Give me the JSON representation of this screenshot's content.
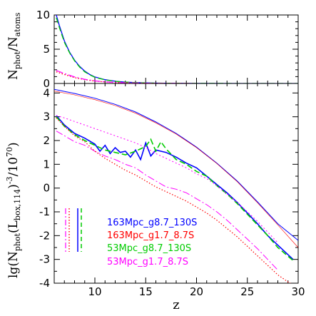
{
  "chart_data": [
    {
      "panel": "top",
      "type": "line",
      "ylabel_main": "N",
      "ylabel_sub1": "phot",
      "ylabel_mid": "/N",
      "ylabel_sub2": "atoms",
      "xlim": [
        6,
        30
      ],
      "ylim": [
        0,
        10
      ],
      "yticks": [
        0,
        5,
        10
      ],
      "series": [
        {
          "color": "#0000ff",
          "dash": "solid",
          "x": [
            6.2,
            6.5,
            7,
            7.5,
            8,
            8.5,
            9,
            9.5,
            10,
            11,
            12,
            13,
            14,
            15,
            16,
            18,
            20,
            25,
            30
          ],
          "y": [
            10,
            8.5,
            6.2,
            4.6,
            3.4,
            2.5,
            1.8,
            1.3,
            0.95,
            0.55,
            0.32,
            0.2,
            0.13,
            0.08,
            0.05,
            0.02,
            0.01,
            0.0,
            0.0
          ]
        },
        {
          "color": "#00cc00",
          "dash": "8,4",
          "x": [
            6.2,
            6.5,
            7,
            7.5,
            8,
            8.5,
            9,
            9.5,
            10,
            11,
            12,
            13,
            14,
            15,
            16,
            18,
            20,
            25,
            30
          ],
          "y": [
            9.6,
            8.2,
            6.0,
            4.5,
            3.3,
            2.4,
            1.7,
            1.25,
            0.9,
            0.52,
            0.3,
            0.19,
            0.12,
            0.07,
            0.05,
            0.02,
            0.01,
            0.0,
            0.0
          ]
        },
        {
          "color": "#ff0000",
          "dash": "1.5,2.5",
          "x": [
            6.2,
            7,
            8,
            9,
            10,
            11,
            12,
            13,
            14,
            15,
            16,
            18,
            20
          ],
          "y": [
            1.7,
            1.3,
            0.85,
            0.55,
            0.35,
            0.22,
            0.14,
            0.09,
            0.06,
            0.04,
            0.02,
            0.01,
            0.0
          ]
        },
        {
          "color": "#ff00ff",
          "dash": "10,3,2,3",
          "x": [
            6.2,
            7,
            8,
            9,
            10,
            11,
            12,
            13,
            14,
            15,
            16,
            18,
            20
          ],
          "y": [
            1.9,
            1.45,
            0.95,
            0.6,
            0.38,
            0.24,
            0.15,
            0.1,
            0.06,
            0.04,
            0.02,
            0.01,
            0.0
          ]
        }
      ]
    },
    {
      "panel": "bottom",
      "type": "line",
      "xlabel": "z",
      "ylabel_prefix": "lg(N",
      "ylabel_sub1": "phot",
      "ylabel_mid": "(L",
      "ylabel_sub2": "box,114",
      "ylabel_mid2": ")",
      "ylabel_sup1": "-3",
      "ylabel_mid3": "/10",
      "ylabel_sup2": "70",
      "ylabel_end": ")",
      "xlim": [
        6,
        30
      ],
      "ylim": [
        -4,
        4.4
      ],
      "xticks": [
        10,
        15,
        20,
        25,
        30
      ],
      "yticks": [
        -4,
        -3,
        -2,
        -1,
        0,
        1,
        2,
        3,
        4
      ],
      "legend": [
        "163Mpc_g8.7_130S",
        "163Mpc_g1.7_8.7S",
        "53Mpc_g8.7_130S",
        "53Mpc_g1.7_8.7S"
      ],
      "legend_colors": [
        "#0000ff",
        "#ff0000",
        "#00cc00",
        "#ff00ff"
      ],
      "series": [
        {
          "color": "#0000ff",
          "dash": "solid",
          "width": 1.0,
          "x": [
            6,
            8,
            10,
            12,
            14,
            16,
            18,
            20,
            22,
            24,
            26,
            28,
            30
          ],
          "y": [
            4.15,
            3.98,
            3.78,
            3.52,
            3.2,
            2.78,
            2.3,
            1.72,
            1.05,
            0.3,
            -0.58,
            -1.5,
            -2.2
          ]
        },
        {
          "color": "#ff0000",
          "dash": "solid",
          "width": 0.6,
          "x": [
            6,
            8,
            10,
            12,
            14,
            16,
            18,
            20,
            22,
            24,
            26,
            28,
            30
          ],
          "y": [
            4.08,
            3.92,
            3.72,
            3.47,
            3.15,
            2.74,
            2.27,
            1.7,
            1.03,
            0.27,
            -0.62,
            -1.55,
            -2.5
          ]
        },
        {
          "color": "#0000ff",
          "dash": "solid",
          "width": 1.6,
          "x": [
            6.2,
            7,
            8,
            9,
            10,
            10.5,
            11,
            11.5,
            12,
            12.5,
            13,
            13.5,
            14,
            14.5,
            15,
            15.5,
            16,
            16.5,
            17,
            18,
            19,
            20,
            21,
            22,
            23,
            24,
            25,
            26,
            27,
            28,
            29.5
          ],
          "y": [
            3.05,
            2.65,
            2.3,
            2.1,
            1.85,
            1.55,
            1.8,
            1.45,
            1.7,
            1.5,
            1.55,
            1.3,
            1.6,
            1.2,
            1.9,
            1.35,
            1.6,
            1.55,
            1.5,
            1.3,
            1.05,
            0.85,
            0.5,
            0.15,
            -0.2,
            -0.6,
            -1.05,
            -1.5,
            -2.0,
            -2.4,
            -3.0
          ]
        },
        {
          "color": "#00cc00",
          "dash": "8,4",
          "width": 1.6,
          "x": [
            6.2,
            7,
            8,
            9,
            10,
            11,
            12,
            13,
            14,
            15,
            15.5,
            16,
            16.5,
            17,
            18,
            19,
            20,
            21,
            22,
            23,
            24,
            25,
            26,
            27,
            28,
            29.5
          ],
          "y": [
            3.0,
            2.6,
            2.25,
            2.0,
            1.8,
            1.6,
            1.5,
            1.4,
            1.55,
            1.75,
            2.05,
            1.55,
            1.95,
            1.65,
            1.2,
            1.0,
            0.7,
            0.5,
            0.1,
            -0.25,
            -0.65,
            -1.1,
            -1.55,
            -2.0,
            -2.5,
            -3.05
          ]
        },
        {
          "color": "#ff00ff",
          "dash": "2,3",
          "width": 1.0,
          "x": [
            6.2,
            7,
            8,
            9,
            10,
            11,
            12,
            13,
            14,
            15,
            16,
            17,
            18,
            19,
            20,
            21,
            22,
            23,
            24,
            25,
            26,
            27,
            28
          ],
          "y": [
            3.05,
            2.95,
            2.8,
            2.65,
            2.5,
            2.35,
            2.2,
            2.05,
            1.9,
            1.7,
            1.45,
            1.25,
            1.05,
            0.85,
            0.6,
            0.4,
            0.1,
            -0.25,
            -0.6,
            -1.0,
            -1.4,
            -1.85,
            -2.3
          ]
        },
        {
          "color": "#ff00ff",
          "dash": "10,3,2,3",
          "width": 1.0,
          "x": [
            6.2,
            7,
            8,
            9,
            10,
            11,
            12,
            13,
            14,
            15,
            16,
            17,
            18,
            19,
            20,
            21,
            22,
            23,
            24,
            25,
            26,
            27,
            28
          ],
          "y": [
            2.4,
            2.2,
            1.95,
            1.8,
            1.55,
            1.35,
            1.2,
            1.0,
            0.85,
            0.55,
            0.3,
            0.05,
            -0.05,
            -0.2,
            -0.45,
            -0.7,
            -1.0,
            -1.35,
            -1.75,
            -2.15,
            -2.55,
            -3.0,
            -3.45
          ]
        },
        {
          "color": "#ff0000",
          "dash": "1.5,2.5",
          "width": 1.2,
          "x": [
            6.2,
            7,
            8,
            9,
            10,
            11,
            12,
            13,
            14,
            15,
            16,
            17,
            18,
            19,
            20,
            21,
            22,
            23,
            24,
            25,
            26,
            27,
            28,
            29,
            30
          ],
          "y": [
            2.95,
            2.6,
            2.2,
            1.95,
            1.55,
            1.25,
            1.0,
            0.75,
            0.55,
            0.3,
            0.05,
            -0.15,
            -0.35,
            -0.55,
            -0.8,
            -1.05,
            -1.35,
            -1.7,
            -2.05,
            -2.45,
            -2.85,
            -3.25,
            -3.65,
            -3.95,
            -4.2
          ]
        }
      ]
    }
  ]
}
